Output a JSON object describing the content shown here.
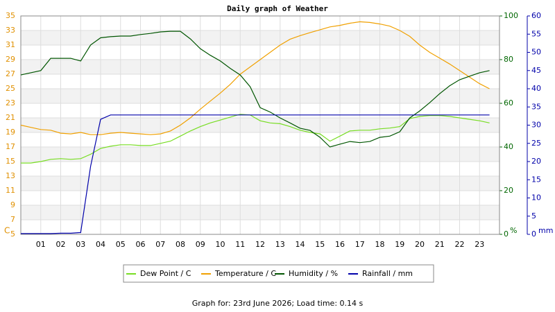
{
  "chart_data": {
    "type": "line",
    "title": "Daily graph of Weather",
    "x": [
      0,
      0.5,
      1,
      1.5,
      2,
      2.5,
      3,
      3.5,
      4,
      4.5,
      5,
      5.5,
      6,
      6.5,
      7,
      7.5,
      8,
      8.5,
      9,
      9.5,
      10,
      10.5,
      11,
      11.5,
      12,
      12.5,
      13,
      13.5,
      14,
      14.5,
      15,
      15.5,
      16,
      16.5,
      17,
      17.5,
      18,
      18.5,
      19,
      19.5,
      20,
      20.5,
      21,
      21.5,
      22,
      22.5,
      23,
      23.5
    ],
    "xlim": [
      0,
      24
    ],
    "xticks": [
      {
        "value": 1,
        "label": "01"
      },
      {
        "value": 2,
        "label": "02"
      },
      {
        "value": 3,
        "label": "03"
      },
      {
        "value": 4,
        "label": "04"
      },
      {
        "value": 5,
        "label": "05"
      },
      {
        "value": 6,
        "label": "06"
      },
      {
        "value": 7,
        "label": "07"
      },
      {
        "value": 8,
        "label": "08"
      },
      {
        "value": 9,
        "label": "09"
      },
      10,
      11,
      12,
      13,
      14,
      15,
      16,
      17,
      18,
      19,
      20,
      21,
      22,
      23
    ],
    "ylim": [
      5,
      35
    ],
    "yticks": [
      5,
      7,
      9,
      11,
      13,
      15,
      17,
      19,
      21,
      23,
      25,
      27,
      29,
      31,
      33,
      35
    ],
    "ylabel": "C",
    "y2lim": [
      0,
      100
    ],
    "y2ticks": [
      0,
      20,
      40,
      60,
      80,
      100
    ],
    "y2label": "%",
    "y3lim": [
      0,
      60
    ],
    "y3ticks": [
      0,
      5,
      10,
      15,
      20,
      25,
      30,
      35,
      40,
      45,
      50,
      55,
      60
    ],
    "y3label": "mm",
    "grid": true,
    "series": [
      {
        "name": "Dew Point / C",
        "color": "#77dd22",
        "axis": "y",
        "values": [
          14.8,
          14.8,
          15,
          15.3,
          15.4,
          15.3,
          15.4,
          16,
          16.8,
          17.1,
          17.3,
          17.3,
          17.2,
          17.2,
          17.5,
          17.8,
          18.5,
          19.2,
          19.8,
          20.3,
          20.7,
          21.1,
          21.5,
          21.4,
          20.6,
          20.3,
          20.2,
          19.8,
          19.3,
          19,
          18.8,
          17.8,
          18.5,
          19.2,
          19.3,
          19.3,
          19.5,
          19.6,
          19.8,
          20.9,
          21.2,
          21.3,
          21.3,
          21.2,
          21,
          20.8,
          20.6,
          20.3
        ]
      },
      {
        "name": "Temperature / C",
        "color": "#f0a000",
        "axis": "y",
        "values": [
          20,
          19.7,
          19.4,
          19.3,
          18.9,
          18.8,
          19,
          18.7,
          18.7,
          18.9,
          19,
          18.9,
          18.8,
          18.7,
          18.8,
          19.2,
          20,
          21,
          22.2,
          23.3,
          24.4,
          25.6,
          27,
          28,
          29,
          30,
          31,
          31.8,
          32.3,
          32.7,
          33.1,
          33.5,
          33.7,
          34,
          34.2,
          34.1,
          33.9,
          33.6,
          33,
          32.2,
          31,
          30,
          29.2,
          28.4,
          27.5,
          26.6,
          25.7,
          25
        ]
      },
      {
        "name": "Humidity / %",
        "color": "#005500",
        "axis": "y2",
        "values": [
          73,
          74,
          75,
          80.6,
          80.6,
          80.6,
          79.4,
          86.7,
          90,
          90.5,
          90.8,
          90.8,
          91.5,
          92,
          92.7,
          93,
          93,
          89.5,
          85,
          82,
          79.4,
          76,
          73,
          67.6,
          58,
          56,
          53.3,
          51,
          48.6,
          47.6,
          44.4,
          40,
          41.3,
          42.5,
          42,
          42.5,
          44.4,
          45,
          47,
          53.3,
          56.5,
          60.3,
          64.4,
          68,
          70.8,
          72.4,
          74,
          75
        ]
      },
      {
        "name": "Rainfall / mm",
        "color": "#0000aa",
        "axis": "y3",
        "values": [
          0.2,
          0.2,
          0.2,
          0.2,
          0.3,
          0.3,
          0.5,
          18.7,
          31.6,
          32.8,
          32.8,
          32.8,
          32.8,
          32.8,
          32.8,
          32.8,
          32.8,
          32.8,
          32.8,
          32.8,
          32.8,
          32.8,
          32.8,
          32.8,
          32.8,
          32.8,
          32.8,
          32.8,
          32.8,
          32.8,
          32.8,
          32.8,
          32.8,
          32.8,
          32.8,
          32.8,
          32.8,
          32.8,
          32.8,
          32.8,
          32.8,
          32.8,
          32.8,
          32.8,
          32.8,
          32.8,
          32.8,
          32.8
        ]
      }
    ]
  },
  "footer": "Graph for: 23rd June 2026; Load time: 0.14 s"
}
